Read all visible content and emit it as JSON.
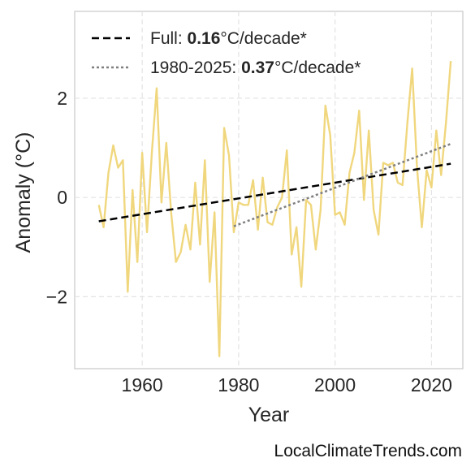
{
  "chart_data": {
    "type": "line",
    "xlabel": "Year",
    "ylabel": "Anomaly (°C)",
    "xlim": [
      1946,
      2026.5
    ],
    "ylim": [
      -3.45,
      3.75
    ],
    "xticks": [
      1960,
      1980,
      2000,
      2020
    ],
    "yticks": [
      -2,
      0,
      2
    ],
    "ytick_labels": [
      "−2",
      "0",
      "2"
    ],
    "grid": true,
    "legend_position": "top-left",
    "series": [
      {
        "style": "solid",
        "color": "#f0d77e",
        "x": [
          1951,
          1952,
          1953,
          1954,
          1955,
          1956,
          1957,
          1958,
          1959,
          1960,
          1961,
          1962,
          1963,
          1964,
          1965,
          1966,
          1967,
          1968,
          1969,
          1970,
          1971,
          1972,
          1973,
          1974,
          1975,
          1976,
          1977,
          1978,
          1979,
          1980,
          1981,
          1982,
          1983,
          1984,
          1985,
          1986,
          1987,
          1988,
          1989,
          1990,
          1991,
          1992,
          1993,
          1994,
          1995,
          1996,
          1997,
          1998,
          1999,
          2000,
          2001,
          2002,
          2003,
          2004,
          2005,
          2006,
          2007,
          2008,
          2009,
          2010,
          2011,
          2012,
          2013,
          2014,
          2015,
          2016,
          2017,
          2018,
          2019,
          2020,
          2021,
          2022,
          2023,
          2024
        ],
        "y": [
          -0.15,
          -0.6,
          0.5,
          1.05,
          0.6,
          0.75,
          -1.9,
          0.15,
          -1.3,
          0.9,
          -0.7,
          0.9,
          2.2,
          -0.1,
          1.1,
          -0.3,
          -1.3,
          -1.1,
          -0.55,
          -1.05,
          0.3,
          -0.95,
          0.75,
          -1.7,
          -0.3,
          -3.2,
          1.4,
          0.85,
          -0.7,
          -0.1,
          -0.15,
          -0.15,
          0.35,
          -0.65,
          0.4,
          -0.5,
          -0.55,
          -0.2,
          0.0,
          0.95,
          -1.15,
          -0.6,
          -1.8,
          -0.05,
          -0.15,
          -1.05,
          -0.25,
          1.85,
          1.25,
          -0.35,
          -0.3,
          -0.55,
          0.5,
          0.9,
          1.75,
          -0.05,
          1.35,
          -0.25,
          -0.75,
          0.7,
          0.65,
          0.7,
          0.3,
          0.25,
          1.5,
          2.6,
          0.6,
          -0.6,
          0.55,
          0.2,
          1.35,
          0.45,
          1.5,
          2.75
        ]
      },
      {
        "name": "Full: 0.16°C/decade*",
        "label_prefix": "Full: ",
        "label_value": "0.16",
        "label_suffix": "°C/decade*",
        "style": "dashed",
        "color": "#000000",
        "x": [
          1951,
          2024
        ],
        "y": [
          -0.48,
          0.68
        ]
      },
      {
        "name": "1980-2025: 0.37°C/decade*",
        "label_prefix": "1980-2025: ",
        "label_value": "0.37",
        "label_suffix": "°C/decade*",
        "style": "dotted",
        "color": "#808080",
        "x": [
          1979,
          2024
        ],
        "y": [
          -0.58,
          1.08
        ]
      }
    ]
  },
  "watermark": "LocalClimateTrends.com"
}
